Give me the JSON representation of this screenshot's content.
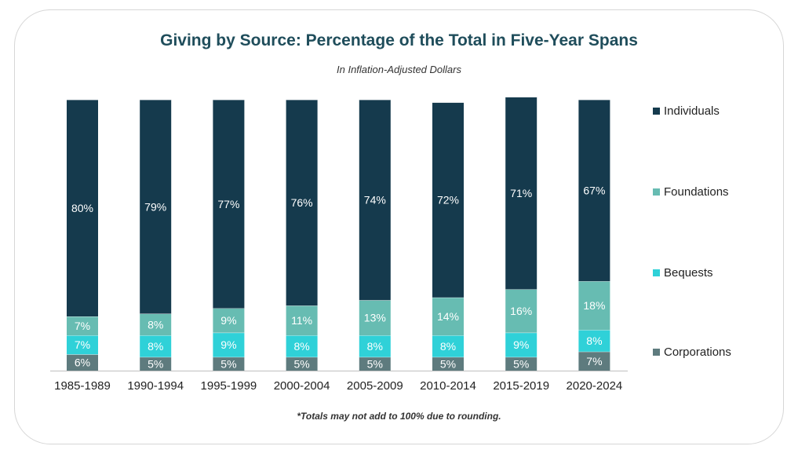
{
  "title": "Giving by Source: Percentage of the Total in Five-Year Spans",
  "subtitle": "In Inflation-Adjusted Dollars",
  "footnote": "*Totals may not add to 100% due to rounding.",
  "chart_data": {
    "type": "bar",
    "stacked": true,
    "title": "Giving by Source: Percentage of the Total in Five-Year Spans",
    "subtitle": "In Inflation-Adjusted Dollars",
    "categories": [
      "1985-1989",
      "1990-1994",
      "1995-1999",
      "2000-2004",
      "2005-2009",
      "2010-2014",
      "2015-2019",
      "2020-2024"
    ],
    "series": [
      {
        "name": "Corporations",
        "color": "#5e7b7e",
        "values": [
          6,
          5,
          5,
          5,
          5,
          5,
          5,
          7
        ],
        "labels": [
          "6%",
          "5%",
          "5%",
          "5%",
          "5%",
          "5%",
          "5%",
          "7%"
        ]
      },
      {
        "name": "Bequests",
        "color": "#2fd1d8",
        "values": [
          7,
          8,
          9,
          8,
          8,
          8,
          9,
          8
        ],
        "labels": [
          "7%",
          "8%",
          "9%",
          "8%",
          "8%",
          "8%",
          "9%",
          "8%"
        ]
      },
      {
        "name": "Foundations",
        "color": "#67bcb2",
        "values": [
          7,
          8,
          9,
          11,
          13,
          14,
          16,
          18
        ],
        "labels": [
          "7%",
          "8%",
          "9%",
          "11%",
          "13%",
          "14%",
          "16%",
          "18%"
        ]
      },
      {
        "name": "Individuals",
        "color": "#153a4d",
        "values": [
          80,
          79,
          77,
          76,
          74,
          72,
          71,
          67
        ],
        "labels": [
          "80%",
          "79%",
          "77%",
          "76%",
          "74%",
          "72%",
          "71%",
          "67%"
        ]
      }
    ],
    "legend": {
      "position": "right",
      "order": [
        "Individuals",
        "Foundations",
        "Bequests",
        "Corporations"
      ]
    },
    "ylim": [
      0,
      100
    ],
    "grid": false,
    "xlabel": "",
    "ylabel": ""
  }
}
